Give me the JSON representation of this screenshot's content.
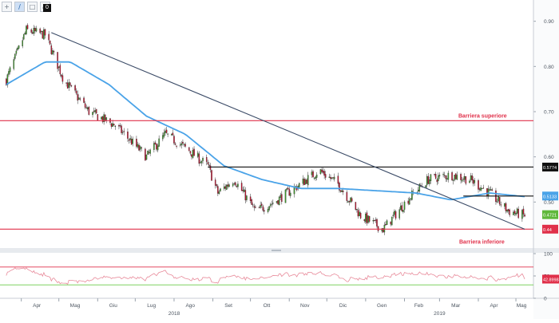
{
  "toolbar": {
    "buttons": [
      {
        "name": "crosshair-tool-icon",
        "glyph": "+"
      },
      {
        "name": "draw-line-tool-icon",
        "glyph": "∕"
      },
      {
        "name": "delete-tool-icon",
        "glyph": "□"
      },
      {
        "name": "zoom-tool-icon",
        "glyph": "⤢"
      }
    ],
    "badge": "0"
  },
  "colors": {
    "candle_up": "#3f9b2a",
    "candle_down": "#c8102e",
    "moving_average": "#4aa3e8",
    "trendline": "#3a4a66",
    "barrier": "#e0304a",
    "support_resistance": "#111111",
    "rsi_line": "#e88a9a",
    "rsi_upper": "#e0304a",
    "rsi_lower": "#6ac94a"
  },
  "chart_data": [
    {
      "type": "candlestick",
      "ylim": [
        0.4,
        0.94
      ],
      "yticks": [
        "0.90",
        "0.80",
        "0.70",
        "0.60",
        "0.50"
      ],
      "x_months": [
        "Apr",
        "Mag",
        "Giu",
        "Lug",
        "Ago",
        "Set",
        "Ott",
        "Nov",
        "Dic",
        "Gen",
        "Feb",
        "Mar",
        "Apr",
        "Mag"
      ],
      "x_years": [
        "2018",
        "2019"
      ],
      "close_anchors": [
        {
          "date": "2018-03-20",
          "close": 0.77
        },
        {
          "date": "2018-04-05",
          "close": 0.88
        },
        {
          "date": "2018-04-20",
          "close": 0.87
        },
        {
          "date": "2018-05-05",
          "close": 0.77
        },
        {
          "date": "2018-05-25",
          "close": 0.7
        },
        {
          "date": "2018-06-15",
          "close": 0.67
        },
        {
          "date": "2018-07-10",
          "close": 0.6
        },
        {
          "date": "2018-07-25",
          "close": 0.65
        },
        {
          "date": "2018-08-10",
          "close": 0.62
        },
        {
          "date": "2018-08-28",
          "close": 0.58
        },
        {
          "date": "2018-09-05",
          "close": 0.52
        },
        {
          "date": "2018-09-18",
          "close": 0.55
        },
        {
          "date": "2018-10-05",
          "close": 0.48
        },
        {
          "date": "2018-10-20",
          "close": 0.5
        },
        {
          "date": "2018-11-10",
          "close": 0.54
        },
        {
          "date": "2018-11-25",
          "close": 0.57
        },
        {
          "date": "2018-12-10",
          "close": 0.54
        },
        {
          "date": "2018-12-28",
          "close": 0.47
        },
        {
          "date": "2019-01-15",
          "close": 0.44
        },
        {
          "date": "2019-02-05",
          "close": 0.51
        },
        {
          "date": "2019-02-20",
          "close": 0.55
        },
        {
          "date": "2019-03-10",
          "close": 0.56
        },
        {
          "date": "2019-03-25",
          "close": 0.55
        },
        {
          "date": "2019-04-10",
          "close": 0.52
        },
        {
          "date": "2019-04-25",
          "close": 0.48
        },
        {
          "date": "2019-05-08",
          "close": 0.47
        }
      ],
      "moving_average_anchors": [
        {
          "date": "2018-03-20",
          "value": 0.76
        },
        {
          "date": "2018-04-20",
          "value": 0.81
        },
        {
          "date": "2018-05-10",
          "value": 0.81
        },
        {
          "date": "2018-06-10",
          "value": 0.76
        },
        {
          "date": "2018-07-10",
          "value": 0.69
        },
        {
          "date": "2018-08-10",
          "value": 0.65
        },
        {
          "date": "2018-09-10",
          "value": 0.58
        },
        {
          "date": "2018-10-10",
          "value": 0.55
        },
        {
          "date": "2018-11-10",
          "value": 0.53
        },
        {
          "date": "2018-12-10",
          "value": 0.53
        },
        {
          "date": "2019-01-10",
          "value": 0.525
        },
        {
          "date": "2019-02-10",
          "value": 0.52
        },
        {
          "date": "2019-03-10",
          "value": 0.505
        },
        {
          "date": "2019-04-10",
          "value": 0.52
        },
        {
          "date": "2019-05-08",
          "value": 0.512
        }
      ],
      "trendline": {
        "start": {
          "date": "2018-04-25",
          "value": 0.875
        },
        "end": {
          "date": "2019-05-08",
          "value": 0.44
        }
      },
      "upper_barrier": {
        "value": 0.68,
        "label": "Barriera superiore"
      },
      "lower_barrier": {
        "value": 0.44,
        "label": "Barriera inferiore"
      },
      "resistance_lines": [
        {
          "start": "2018-08-28",
          "end": "2019-05-12",
          "value": 0.5774
        },
        {
          "start": "2019-03-20",
          "end": "2019-05-12",
          "value": 0.5133
        }
      ],
      "price_tags": [
        {
          "label": "0.5774",
          "value": 0.5774,
          "style": "black"
        },
        {
          "label": "0.5133",
          "value": 0.5133,
          "style": "blue"
        },
        {
          "label": "0.4721",
          "value": 0.4721,
          "style": "green"
        },
        {
          "label": "0.44",
          "value": 0.44,
          "style": "red"
        }
      ]
    },
    {
      "type": "line",
      "series": [
        {
          "name": "",
          "values": "oscillating"
        }
      ],
      "ylim": [
        0,
        100
      ],
      "yticks": [
        "100",
        "50",
        "0"
      ],
      "upper_level": 70,
      "lower_level": 30,
      "last_value_label": "42.89983",
      "last_value": 42.9
    }
  ]
}
